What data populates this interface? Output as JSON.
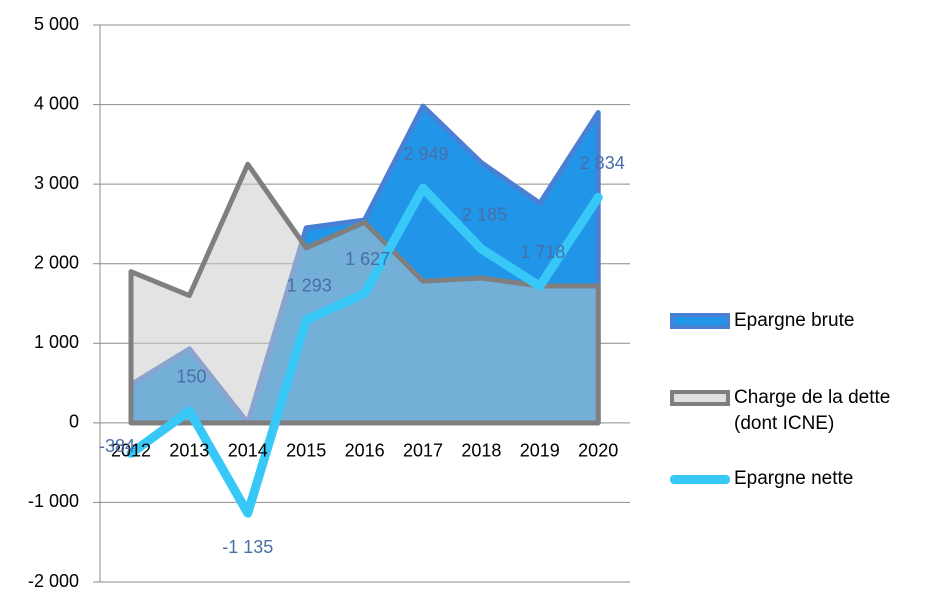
{
  "chart_data": {
    "type": "area-line",
    "categories": [
      "2012",
      "2013",
      "2014",
      "2015",
      "2016",
      "2017",
      "2018",
      "2019",
      "2020"
    ],
    "series": [
      {
        "name": "Epargne brute",
        "type": "area",
        "color": "#2196e8",
        "border": "#4a80d4",
        "values": [
          480,
          930,
          0,
          2450,
          2550,
          3980,
          3270,
          2760,
          3900
        ]
      },
      {
        "name": "Charge de la dette (dont ICNE)",
        "type": "area",
        "color": "#c8c8c8",
        "border": "#7f7f7f",
        "values": [
          1900,
          1600,
          3250,
          2200,
          2520,
          1780,
          1820,
          1720,
          1720
        ]
      },
      {
        "name": "Epargne nette",
        "type": "line",
        "color": "#38c8f8",
        "values": [
          -384,
          150,
          -1135,
          1293,
          1627,
          2949,
          2185,
          1718,
          2834
        ],
        "value_labels": [
          "-384",
          "150",
          "-1 135",
          "1 293",
          "1 627",
          "2 949",
          "2 185",
          "1 718",
          "2 834"
        ]
      }
    ],
    "ylim": [
      -2000,
      5000
    ],
    "yticks": [
      {
        "value": -2000,
        "label": "-2 000"
      },
      {
        "value": -1000,
        "label": "-1 000"
      },
      0,
      {
        "value": 1000,
        "label": "1 000"
      },
      {
        "value": 2000,
        "label": "2 000"
      },
      {
        "value": 3000,
        "label": "3 000"
      },
      {
        "value": 4000,
        "label": "4 000"
      },
      {
        "value": 5000,
        "label": "5 000"
      }
    ],
    "grid": true
  }
}
